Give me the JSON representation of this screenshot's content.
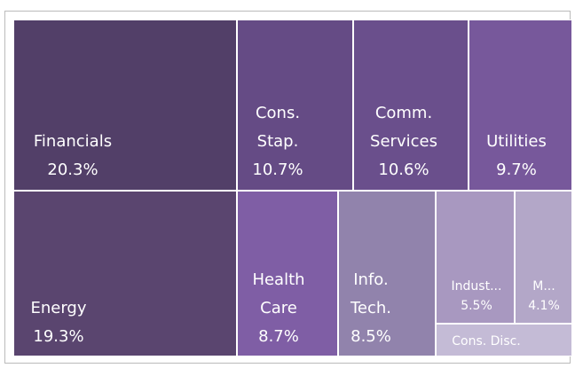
{
  "chart_data": {
    "type": "treemap",
    "categories": [
      "Financials",
      "Cons. Stap.",
      "Comm. Services",
      "Utilities",
      "Energy",
      "Health Care",
      "Info. Tech.",
      "Indust...",
      "M...",
      "Cons. Disc."
    ],
    "values": [
      20.3,
      10.7,
      10.6,
      9.7,
      19.3,
      8.7,
      8.5,
      5.5,
      4.1,
      2.6
    ],
    "value_labels": [
      "20.3%",
      "10.7%",
      "10.6%",
      "9.7%",
      "19.3%",
      "8.7%",
      "8.5%",
      "5.5%",
      "4.1%",
      null
    ],
    "colors": [
      "#523f68",
      "#654b85",
      "#6a4f8c",
      "#77589b",
      "#5a456f",
      "#7f5ea5",
      "#9183ac",
      "#a898c0",
      "#b3a7c8",
      "#c4bbd6"
    ]
  }
}
